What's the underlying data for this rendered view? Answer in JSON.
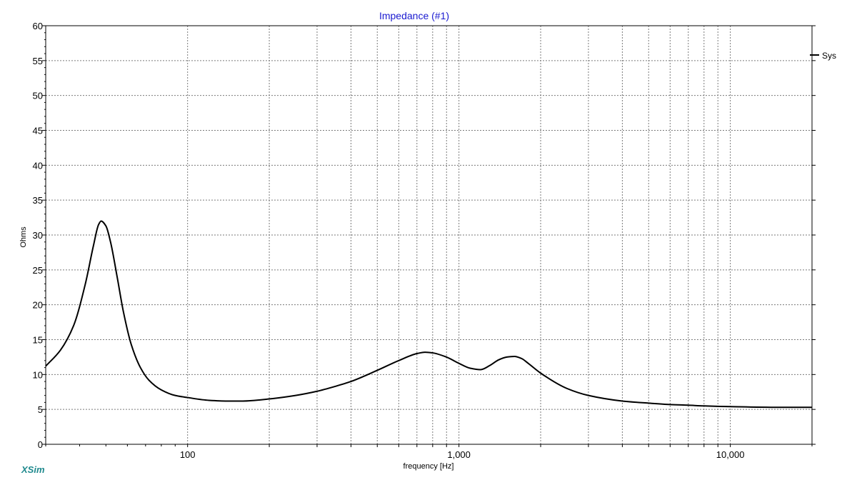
{
  "chart_data": {
    "type": "line",
    "title": "Impedance (#1)",
    "xlabel": "frequency [Hz]",
    "ylabel": "Ohms",
    "xscale": "log",
    "xlim": [
      30,
      20000
    ],
    "ylim": [
      0,
      60
    ],
    "yticks": [
      0,
      5,
      10,
      15,
      20,
      25,
      30,
      35,
      40,
      45,
      50,
      55,
      60
    ],
    "xtick_labels": [
      {
        "value": 100,
        "label": "100"
      },
      {
        "value": 1000,
        "label": "1,000"
      },
      {
        "value": 10000,
        "label": "10,000"
      }
    ],
    "x_gridlines": [
      100,
      200,
      300,
      400,
      500,
      600,
      700,
      800,
      900,
      1000,
      2000,
      3000,
      4000,
      5000,
      6000,
      7000,
      8000,
      9000,
      10000
    ],
    "grid": true,
    "legend_position": "right",
    "series": [
      {
        "name": "Sys",
        "color": "#000000",
        "x": [
          30,
          34,
          38,
          42,
          45,
          47,
          48,
          50,
          52,
          55,
          58,
          62,
          67,
          72,
          80,
          90,
          100,
          120,
          140,
          160,
          200,
          250,
          300,
          350,
          400,
          500,
          600,
          700,
          750,
          800,
          900,
          1000,
          1100,
          1200,
          1300,
          1400,
          1500,
          1600,
          1700,
          1800,
          2000,
          2500,
          3000,
          4000,
          5000,
          6000,
          7000,
          8000,
          10000,
          15000,
          20000
        ],
        "y": [
          11.2,
          13.5,
          17.0,
          23.0,
          28.5,
          31.5,
          32.0,
          31.3,
          29.0,
          24.0,
          19.0,
          14.3,
          11.0,
          9.2,
          7.8,
          7.0,
          6.7,
          6.3,
          6.2,
          6.2,
          6.5,
          7.0,
          7.6,
          8.3,
          9.0,
          10.6,
          12.0,
          13.0,
          13.2,
          13.1,
          12.5,
          11.6,
          10.9,
          10.7,
          11.3,
          12.1,
          12.5,
          12.6,
          12.3,
          11.6,
          10.2,
          8.0,
          7.0,
          6.2,
          5.9,
          5.7,
          5.6,
          5.5,
          5.4,
          5.3,
          5.3
        ]
      }
    ]
  },
  "branding": {
    "text": "XSim",
    "color": "#208a8e"
  },
  "colors": {
    "title": "#1a1ad0",
    "grid": "#7a7a7a",
    "axis": "#000000"
  }
}
